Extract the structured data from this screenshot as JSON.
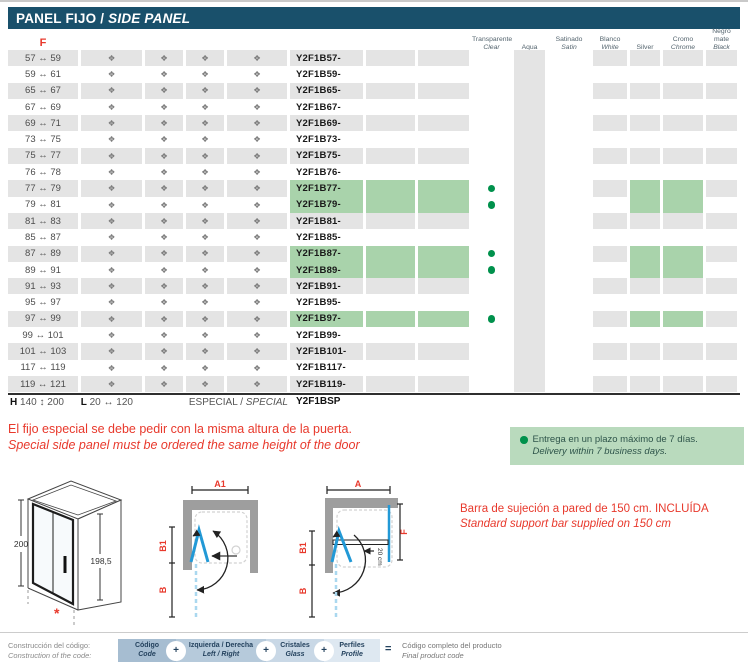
{
  "title_bar": {
    "es": "PANEL FIJO /",
    "en": "SIDE PANEL"
  },
  "colors": {
    "header_bar": "#19506b",
    "stripe": "#e4e4e4",
    "promo": "#a9d3ab",
    "dot_green": "#00914c",
    "red": "#e8392c",
    "delivery_box": "#b9dabd",
    "blue_glass": "#2299d6",
    "wall_gray": "#9e9e9e",
    "code_segments": [
      "#a6bdd1",
      "#b6cadb",
      "#c9d8e6",
      "#dee8f1"
    ]
  },
  "table": {
    "f_label": "F",
    "diamond_icon": "❖",
    "finish_headers": [
      {
        "l1": "Transparente",
        "l2": "Clear"
      },
      {
        "l1": "Aqua",
        "l2": ""
      },
      {
        "l1": "Satinado",
        "l2": "Satin"
      },
      {
        "l1": "Blanco",
        "l2": "White"
      },
      {
        "l1": "Silver",
        "l2": ""
      },
      {
        "l1": "Cromo",
        "l2": "Chrome"
      },
      {
        "l1": "Negro mate",
        "l2": "Black"
      }
    ],
    "rows": [
      {
        "size": "57 ↔ 59",
        "code": "Y2F1B57-",
        "promo": false
      },
      {
        "size": "59 ↔ 61",
        "code": "Y2F1B59-",
        "promo": false
      },
      {
        "size": "65 ↔ 67",
        "code": "Y2F1B65-",
        "promo": false
      },
      {
        "size": "67 ↔ 69",
        "code": "Y2F1B67-",
        "promo": false
      },
      {
        "size": "69 ↔ 71",
        "code": "Y2F1B69-",
        "promo": false
      },
      {
        "size": "73 ↔ 75",
        "code": "Y2F1B73-",
        "promo": false
      },
      {
        "size": "75 ↔ 77",
        "code": "Y2F1B75-",
        "promo": false
      },
      {
        "size": "76 ↔ 78",
        "code": "Y2F1B76-",
        "promo": false
      },
      {
        "size": "77 ↔ 79",
        "code": "Y2F1B77-",
        "promo": true
      },
      {
        "size": "79 ↔ 81",
        "code": "Y2F1B79-",
        "promo": true
      },
      {
        "size": "81 ↔ 83",
        "code": "Y2F1B81-",
        "promo": false
      },
      {
        "size": "85 ↔ 87",
        "code": "Y2F1B85-",
        "promo": false
      },
      {
        "size": "87 ↔ 89",
        "code": "Y2F1B87-",
        "promo": true
      },
      {
        "size": "89 ↔ 91",
        "code": "Y2F1B89-",
        "promo": true
      },
      {
        "size": "91 ↔ 93",
        "code": "Y2F1B91-",
        "promo": false
      },
      {
        "size": "95 ↔ 97",
        "code": "Y2F1B95-",
        "promo": false
      },
      {
        "size": "97 ↔ 99",
        "code": "Y2F1B97-",
        "promo": true
      },
      {
        "size": "99 ↔ 101",
        "code": "Y2F1B99-",
        "promo": false
      },
      {
        "size": "101 ↔ 103",
        "code": "Y2F1B101-",
        "promo": false
      },
      {
        "size": "117 ↔ 119",
        "code": "Y2F1B117-",
        "promo": false
      },
      {
        "size": "119 ↔ 121",
        "code": "Y2F1B119-",
        "promo": false
      }
    ],
    "special_row": {
      "h_label": "H",
      "h_value": "140 ↕ 200",
      "l_label": "L",
      "l_value": "20 ↔ 120",
      "especial": "ESPECIAL / ",
      "special": "SPECIAL",
      "code": "Y2F1BSP"
    }
  },
  "notes": {
    "special_es": "El fijo especial se debe pedir con la misma altura de la puerta.",
    "special_en": "Special side panel must be ordered the same height of the door",
    "delivery_es": "Entrega en un plazo máximo de 7 días.",
    "delivery_en": "Delivery within 7 business days.",
    "support_es": "Barra de sujeción a pared de 150 cm. INCLUÍDA",
    "support_en": "Standard support bar supplied on 150 cm"
  },
  "diagrams": {
    "iso": {
      "dim_left": "200",
      "dim_right": "198,5",
      "asterisk": "*"
    },
    "plan_a1": {
      "top": "A1",
      "depth1": "B1",
      "depth2": "B"
    },
    "plan_a": {
      "top": "A",
      "depth1": "B1",
      "depth2": "B",
      "panel": "F",
      "bar": "20 cm"
    }
  },
  "footer": {
    "left_es": "Construcción del código:",
    "left_en": "Construction of the code:",
    "segments": [
      {
        "l1": "Código",
        "l2": "Code"
      },
      {
        "l1": "Izquierda / Derecha",
        "l2": "Left / Right"
      },
      {
        "l1": "Cristales",
        "l2": "Glass"
      },
      {
        "l1": "Perfiles",
        "l2": "Profile"
      }
    ],
    "plus": "+",
    "equals": "=",
    "result_es": "Código completo del producto",
    "result_en": "Final product code"
  }
}
